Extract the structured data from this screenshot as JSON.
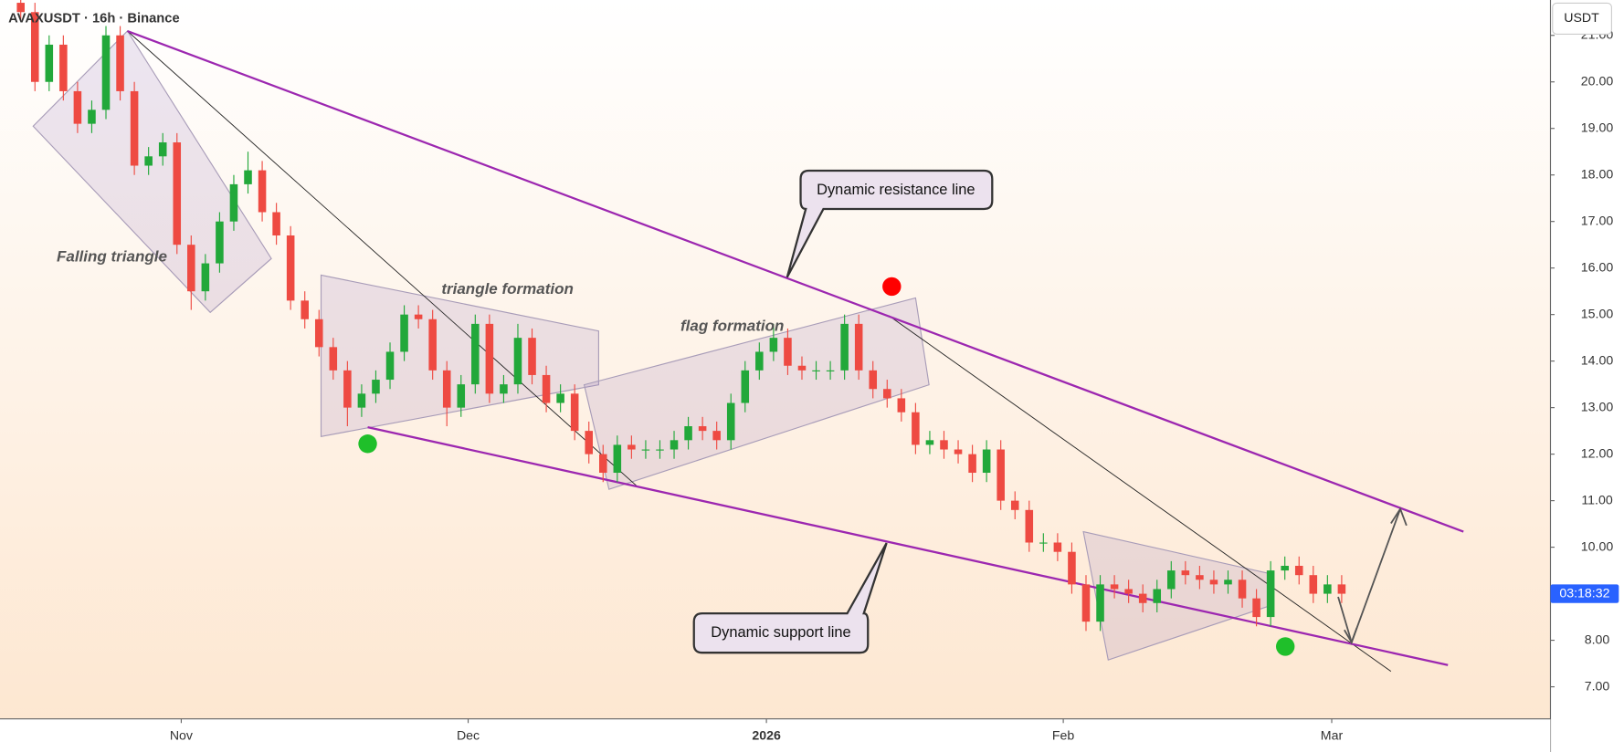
{
  "header": {
    "title": "AVAXUSDT · 16h · Binance",
    "currency": "USDT",
    "countdown": "03:18:32"
  },
  "chart_data": {
    "type": "candlestick",
    "colors": {
      "up": "#22a83a",
      "down": "#ee4a42"
    },
    "candles": [
      [
        21.7,
        21.9,
        21.3,
        21.5
      ],
      [
        21.5,
        21.7,
        19.8,
        20.0
      ],
      [
        20.0,
        21.0,
        19.8,
        20.8
      ],
      [
        20.8,
        21.0,
        19.6,
        19.8
      ],
      [
        19.8,
        20.0,
        18.9,
        19.1
      ],
      [
        19.1,
        19.6,
        18.9,
        19.4
      ],
      [
        19.4,
        21.2,
        19.2,
        21.0
      ],
      [
        21.0,
        21.2,
        19.6,
        19.8
      ],
      [
        19.8,
        20.0,
        18.0,
        18.2
      ],
      [
        18.2,
        18.6,
        18.0,
        18.4
      ],
      [
        18.4,
        18.9,
        18.2,
        18.7
      ],
      [
        18.7,
        18.9,
        16.3,
        16.5
      ],
      [
        16.5,
        16.7,
        15.1,
        15.5
      ],
      [
        15.5,
        16.3,
        15.3,
        16.1
      ],
      [
        16.1,
        17.2,
        15.9,
        17.0
      ],
      [
        17.0,
        18.0,
        16.8,
        17.8
      ],
      [
        17.8,
        18.5,
        17.6,
        18.1
      ],
      [
        18.1,
        18.3,
        17.0,
        17.2
      ],
      [
        17.2,
        17.4,
        16.5,
        16.7
      ],
      [
        16.7,
        16.9,
        15.1,
        15.3
      ],
      [
        15.3,
        15.5,
        14.7,
        14.9
      ],
      [
        14.9,
        15.1,
        14.1,
        14.3
      ],
      [
        14.3,
        14.5,
        13.6,
        13.8
      ],
      [
        13.8,
        14.0,
        12.6,
        13.0
      ],
      [
        13.0,
        13.5,
        12.8,
        13.3
      ],
      [
        13.3,
        13.8,
        13.1,
        13.6
      ],
      [
        13.6,
        14.4,
        13.4,
        14.2
      ],
      [
        14.2,
        15.2,
        14.0,
        15.0
      ],
      [
        15.0,
        15.2,
        14.7,
        14.9
      ],
      [
        14.9,
        15.1,
        13.6,
        13.8
      ],
      [
        13.8,
        14.0,
        12.6,
        13.0
      ],
      [
        13.0,
        13.7,
        12.8,
        13.5
      ],
      [
        13.5,
        15.0,
        13.3,
        14.8
      ],
      [
        14.8,
        15.0,
        13.1,
        13.3
      ],
      [
        13.3,
        13.7,
        13.1,
        13.5
      ],
      [
        13.5,
        14.8,
        13.3,
        14.5
      ],
      [
        14.5,
        14.7,
        13.5,
        13.7
      ],
      [
        13.7,
        13.9,
        12.9,
        13.1
      ],
      [
        13.1,
        13.5,
        12.9,
        13.3
      ],
      [
        13.3,
        13.5,
        12.3,
        12.5
      ],
      [
        12.5,
        12.7,
        11.8,
        12.0
      ],
      [
        12.0,
        12.2,
        11.4,
        11.6
      ],
      [
        11.6,
        12.4,
        11.4,
        12.2
      ],
      [
        12.2,
        12.4,
        11.9,
        12.1
      ],
      [
        12.1,
        12.3,
        11.9,
        12.1
      ],
      [
        12.1,
        12.3,
        11.9,
        12.1
      ],
      [
        12.1,
        12.5,
        11.9,
        12.3
      ],
      [
        12.3,
        12.8,
        12.1,
        12.6
      ],
      [
        12.6,
        12.8,
        12.3,
        12.5
      ],
      [
        12.5,
        12.7,
        12.1,
        12.3
      ],
      [
        12.3,
        13.3,
        12.1,
        13.1
      ],
      [
        13.1,
        14.0,
        12.9,
        13.8
      ],
      [
        13.8,
        14.4,
        13.6,
        14.2
      ],
      [
        14.2,
        14.8,
        14.0,
        14.5
      ],
      [
        14.5,
        14.7,
        13.7,
        13.9
      ],
      [
        13.9,
        14.1,
        13.6,
        13.8
      ],
      [
        13.8,
        14.0,
        13.6,
        13.8
      ],
      [
        13.8,
        14.0,
        13.6,
        13.8
      ],
      [
        13.8,
        15.0,
        13.6,
        14.8
      ],
      [
        14.8,
        15.0,
        13.6,
        13.8
      ],
      [
        13.8,
        14.0,
        13.2,
        13.4
      ],
      [
        13.4,
        13.6,
        13.0,
        13.2
      ],
      [
        13.2,
        13.4,
        12.7,
        12.9
      ],
      [
        12.9,
        13.1,
        12.0,
        12.2
      ],
      [
        12.2,
        12.5,
        12.0,
        12.3
      ],
      [
        12.3,
        12.5,
        11.9,
        12.1
      ],
      [
        12.1,
        12.3,
        11.8,
        12.0
      ],
      [
        12.0,
        12.2,
        11.4,
        11.6
      ],
      [
        11.6,
        12.3,
        11.4,
        12.1
      ],
      [
        12.1,
        12.3,
        10.8,
        11.0
      ],
      [
        11.0,
        11.2,
        10.6,
        10.8
      ],
      [
        10.8,
        11.0,
        9.9,
        10.1
      ],
      [
        10.1,
        10.3,
        9.9,
        10.1
      ],
      [
        10.1,
        10.3,
        9.7,
        9.9
      ],
      [
        9.9,
        10.1,
        9.0,
        9.2
      ],
      [
        9.2,
        9.4,
        8.2,
        8.4
      ],
      [
        8.4,
        9.4,
        8.2,
        9.2
      ],
      [
        9.2,
        9.4,
        8.9,
        9.1
      ],
      [
        9.1,
        9.3,
        8.8,
        9.0
      ],
      [
        9.0,
        9.2,
        8.6,
        8.8
      ],
      [
        8.8,
        9.3,
        8.6,
        9.1
      ],
      [
        9.1,
        9.7,
        8.9,
        9.5
      ],
      [
        9.5,
        9.7,
        9.2,
        9.4
      ],
      [
        9.4,
        9.6,
        9.1,
        9.3
      ],
      [
        9.3,
        9.5,
        9.0,
        9.2
      ],
      [
        9.2,
        9.5,
        9.0,
        9.3
      ],
      [
        9.3,
        9.5,
        8.7,
        8.9
      ],
      [
        8.9,
        9.1,
        8.3,
        8.5
      ],
      [
        8.5,
        9.7,
        8.3,
        9.5
      ],
      [
        9.5,
        9.8,
        9.3,
        9.6
      ],
      [
        9.6,
        9.8,
        9.2,
        9.4
      ],
      [
        9.4,
        9.6,
        8.8,
        9.0
      ],
      [
        9.0,
        9.4,
        8.8,
        9.2
      ],
      [
        9.2,
        9.4,
        8.8,
        9.0
      ]
    ],
    "xlim": [
      -1.46,
      107.7
    ],
    "xticks": [
      {
        "value": 11.3,
        "label": "Nov"
      },
      {
        "value": 31.5,
        "label": "Dec"
      },
      {
        "value": 52.5,
        "label": "2026"
      },
      {
        "value": 73.4,
        "label": "Feb"
      },
      {
        "value": 92.3,
        "label": "Mar"
      }
    ],
    "ylim": [
      6.31,
      21.76
    ],
    "yticks": [
      {
        "value": 7,
        "label": "7.00"
      },
      {
        "value": 8,
        "label": "8.00"
      },
      {
        "value": 9,
        "label": "9.00"
      },
      {
        "value": 10,
        "label": "10.00"
      },
      {
        "value": 11,
        "label": "11.00"
      },
      {
        "value": 12,
        "label": "12.00"
      },
      {
        "value": 13,
        "label": "13.00"
      },
      {
        "value": 14,
        "label": "14.00"
      },
      {
        "value": 15,
        "label": "15.00"
      },
      {
        "value": 16,
        "label": "16.00"
      },
      {
        "value": 17,
        "label": "17.00"
      },
      {
        "value": 18,
        "label": "18.00"
      },
      {
        "value": 19,
        "label": "19.00"
      },
      {
        "value": 20,
        "label": "20.00"
      },
      {
        "value": 21,
        "label": "21.00"
      }
    ],
    "annotations": [
      "Falling triangle",
      "triangle formation",
      "flag formation",
      "Dynamic resistance line",
      "Dynamic support line"
    ]
  }
}
